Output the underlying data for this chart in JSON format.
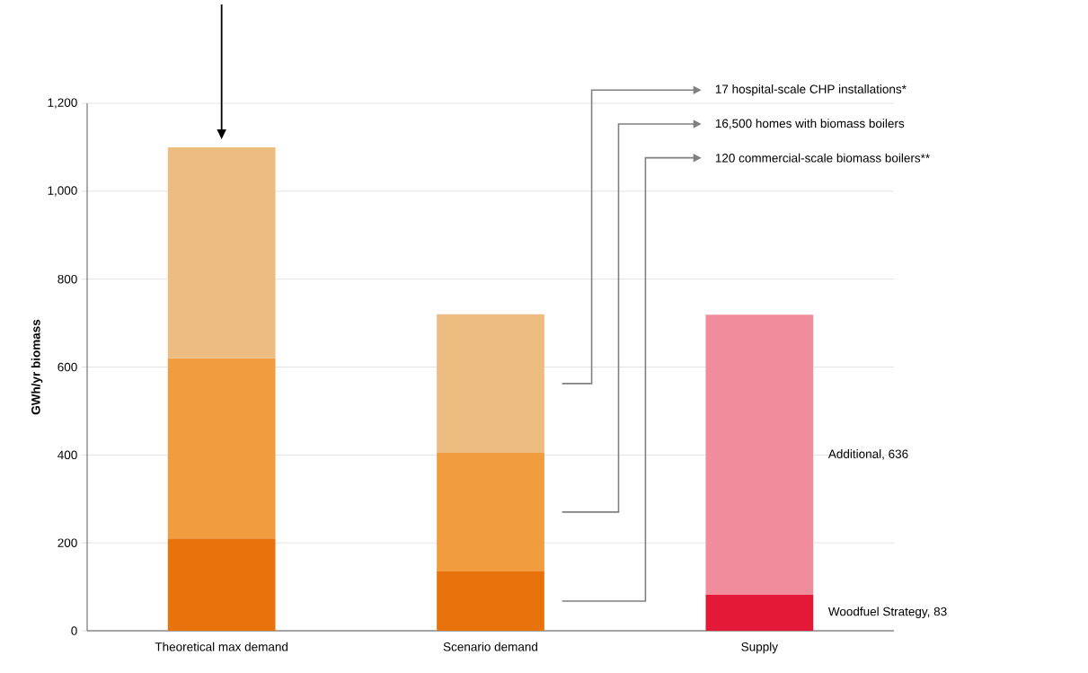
{
  "chart_data": {
    "type": "bar",
    "stacked": true,
    "ylabel": "GWh/yr biomass",
    "categories": [
      "Theoretical max demand",
      "Scenario demand",
      "Supply"
    ],
    "series": [
      {
        "color": "#e8720c",
        "values": [
          210,
          135,
          null
        ]
      },
      {
        "color": "#f29c40",
        "values": [
          410,
          270,
          null
        ]
      },
      {
        "color": "#ecbc80",
        "values": [
          480,
          315,
          null
        ]
      },
      {
        "color": "#e31937",
        "values": [
          null,
          null,
          83
        ]
      },
      {
        "color": "#f08c9b",
        "values": [
          null,
          null,
          636
        ]
      }
    ],
    "ylim": [
      0,
      1200
    ],
    "yticks": [
      0,
      200,
      400,
      600,
      800,
      {
        "value": 1000,
        "label": "1,000"
      },
      {
        "value": 1200,
        "label": "1,200"
      }
    ],
    "grid": "y",
    "annotations": [
      "17 hospital-scale CHP installations*",
      "16,500 homes with biomass boilers",
      "120 commercial-scale biomass boilers**",
      "Additional, 636",
      "Woodfuel Strategy, 83"
    ]
  }
}
